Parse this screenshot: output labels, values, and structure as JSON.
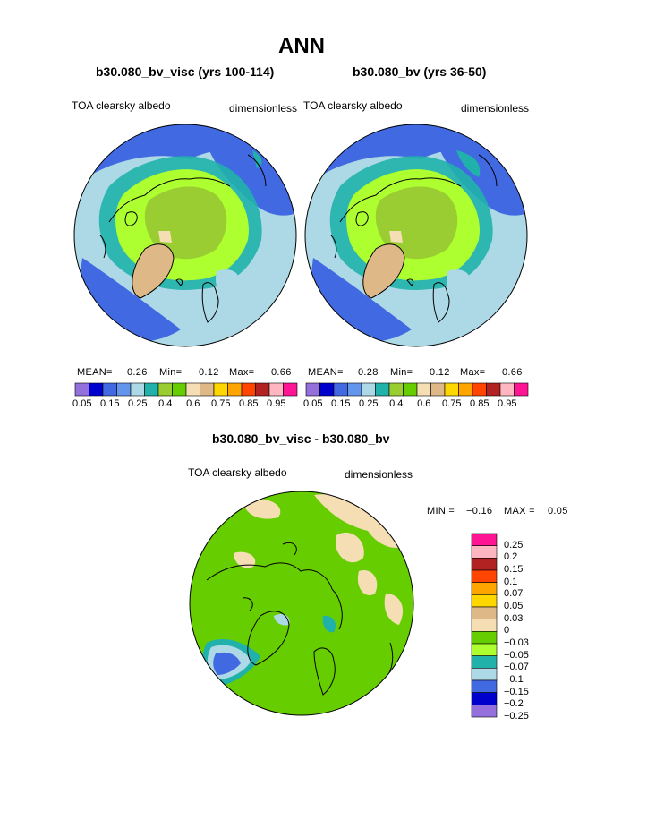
{
  "page": {
    "title": "ANN",
    "panel_left": {
      "case": "b30.080_bv_visc (yrs 100-114)",
      "variable": "TOA clearsky albedo",
      "units": "dimensionless",
      "mean_label": "MEAN=",
      "mean_value": "0.26",
      "min_label": "Min=",
      "min_value": "0.12",
      "max_label": "Max=",
      "max_value": "0.66"
    },
    "panel_right": {
      "case": "b30.080_bv (yrs 36-50)",
      "variable": "TOA clearsky albedo",
      "units": "dimensionless",
      "mean_label": "MEAN=",
      "mean_value": "0.28",
      "min_label": "Min=",
      "min_value": "0.12",
      "max_label": "Max=",
      "max_value": "0.66"
    },
    "panel_diff": {
      "case": "b30.080_bv_visc - b30.080_bv",
      "variable": "TOA clearsky albedo",
      "units": "dimensionless",
      "min_label": "MIN =",
      "min_value": "−0.16",
      "max_label": "MAX =",
      "max_value": "0.05"
    }
  },
  "colorbars": {
    "main": {
      "colors": [
        "#9370db",
        "#0000cd",
        "#4169e1",
        "#6495ed",
        "#add8e6",
        "#20b2aa",
        "#9acd32",
        "#66cd00",
        "#f5deb3",
        "#deb887",
        "#ffd700",
        "#ffa500",
        "#ff4500",
        "#b22222",
        "#ffb6c1",
        "#ff1493"
      ],
      "ticks": [
        "0.05",
        "0.15",
        "0.25",
        "0.4",
        "0.6",
        "0.75",
        "0.85",
        "0.95"
      ]
    },
    "diff": {
      "colors_top_to_bottom": [
        "#ff1493",
        "#ffb6c1",
        "#b22222",
        "#ff4500",
        "#ffa500",
        "#ffd700",
        "#deb887",
        "#f5deb3",
        "#66cd00",
        "#adff2f",
        "#20b2aa",
        "#add8e6",
        "#4169e1",
        "#0000cd",
        "#9370db"
      ],
      "ticks": [
        "0.25",
        "0.2",
        "0.15",
        "0.1",
        "0.07",
        "0.05",
        "0.03",
        "0",
        "−0.03",
        "−0.05",
        "−0.07",
        "−0.1",
        "−0.15",
        "−0.2",
        "−0.25"
      ]
    }
  },
  "map_colors": {
    "ocean_low": "#4169e1",
    "ocean_mid": "#add8e6",
    "teal": "#20b2aa",
    "green": "#66cd00",
    "yellowgreen": "#adff2f",
    "olive": "#9acd32",
    "tan": "#deb887",
    "wheat": "#f5deb3"
  }
}
